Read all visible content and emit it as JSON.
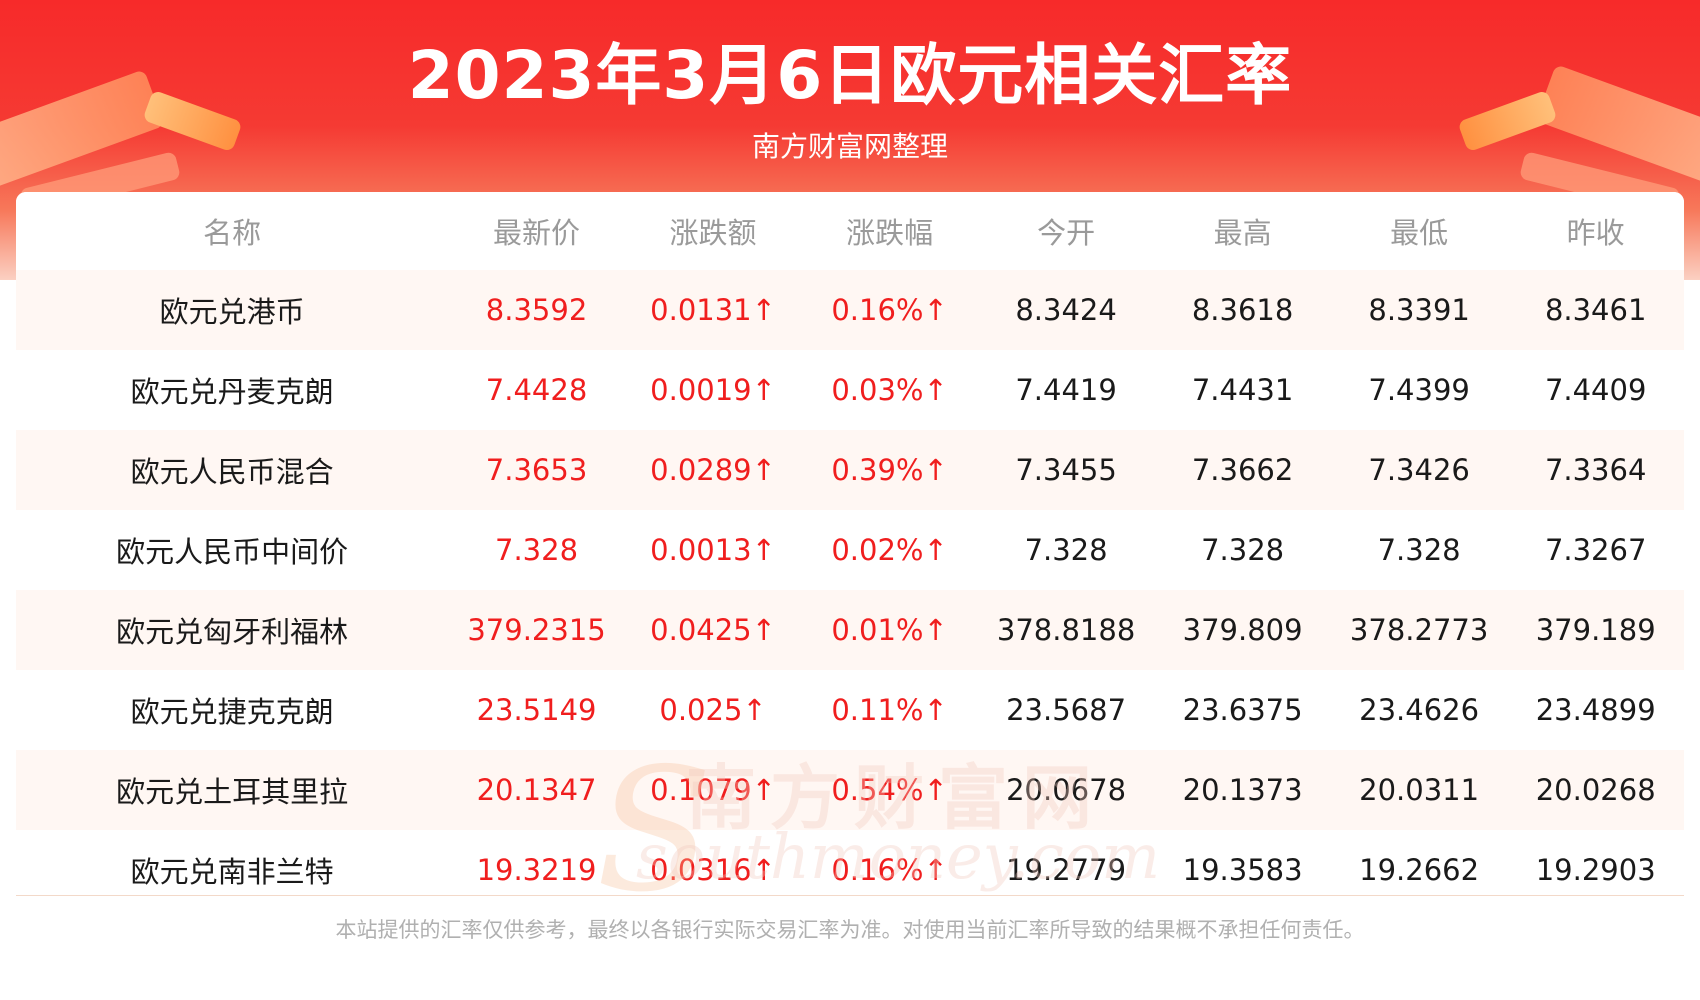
{
  "header": {
    "title": "2023年3月6日欧元相关汇率",
    "subtitle": "南方财富网整理"
  },
  "table": {
    "columns": [
      "名称",
      "最新价",
      "涨跌额",
      "涨跌幅",
      "今开",
      "最高",
      "最低",
      "昨收"
    ],
    "rows": [
      [
        "欧元兑港币",
        "8.3592",
        "0.0131↑",
        "0.16%↑",
        "8.3424",
        "8.3618",
        "8.3391",
        "8.3461"
      ],
      [
        "欧元兑丹麦克朗",
        "7.4428",
        "0.0019↑",
        "0.03%↑",
        "7.4419",
        "7.4431",
        "7.4399",
        "7.4409"
      ],
      [
        "欧元人民币混合",
        "7.3653",
        "0.0289↑",
        "0.39%↑",
        "7.3455",
        "7.3662",
        "7.3426",
        "7.3364"
      ],
      [
        "欧元人民币中间价",
        "7.328",
        "0.0013↑",
        "0.02%↑",
        "7.328",
        "7.328",
        "7.328",
        "7.3267"
      ],
      [
        "欧元兑匈牙利福林",
        "379.2315",
        "0.0425↑",
        "0.01%↑",
        "378.8188",
        "379.809",
        "378.2773",
        "379.189"
      ],
      [
        "欧元兑捷克克朗",
        "23.5149",
        "0.025↑",
        "0.11%↑",
        "23.5687",
        "23.6375",
        "23.4626",
        "23.4899"
      ],
      [
        "欧元兑土耳其里拉",
        "20.1347",
        "0.1079↑",
        "0.54%↑",
        "20.0678",
        "20.1373",
        "20.0311",
        "20.0268"
      ],
      [
        "欧元兑南非兰特",
        "19.3219",
        "0.0316↑",
        "0.16%↑",
        "19.2779",
        "19.3583",
        "19.2662",
        "19.2903"
      ]
    ]
  },
  "watermark": {
    "text_cn": "南方财富网",
    "text_en": "southmoney.com"
  },
  "footer": {
    "disclaimer": "本站提供的汇率仅供参考，最终以各银行实际交易汇率为准。对使用当前汇率所导致的结果概不承担任何责任。"
  },
  "colors": {
    "banner_red": "#f72a2a",
    "price_red": "#f01e1e",
    "row_tint": "#fff7f3",
    "header_gray": "#9a9a9a"
  }
}
